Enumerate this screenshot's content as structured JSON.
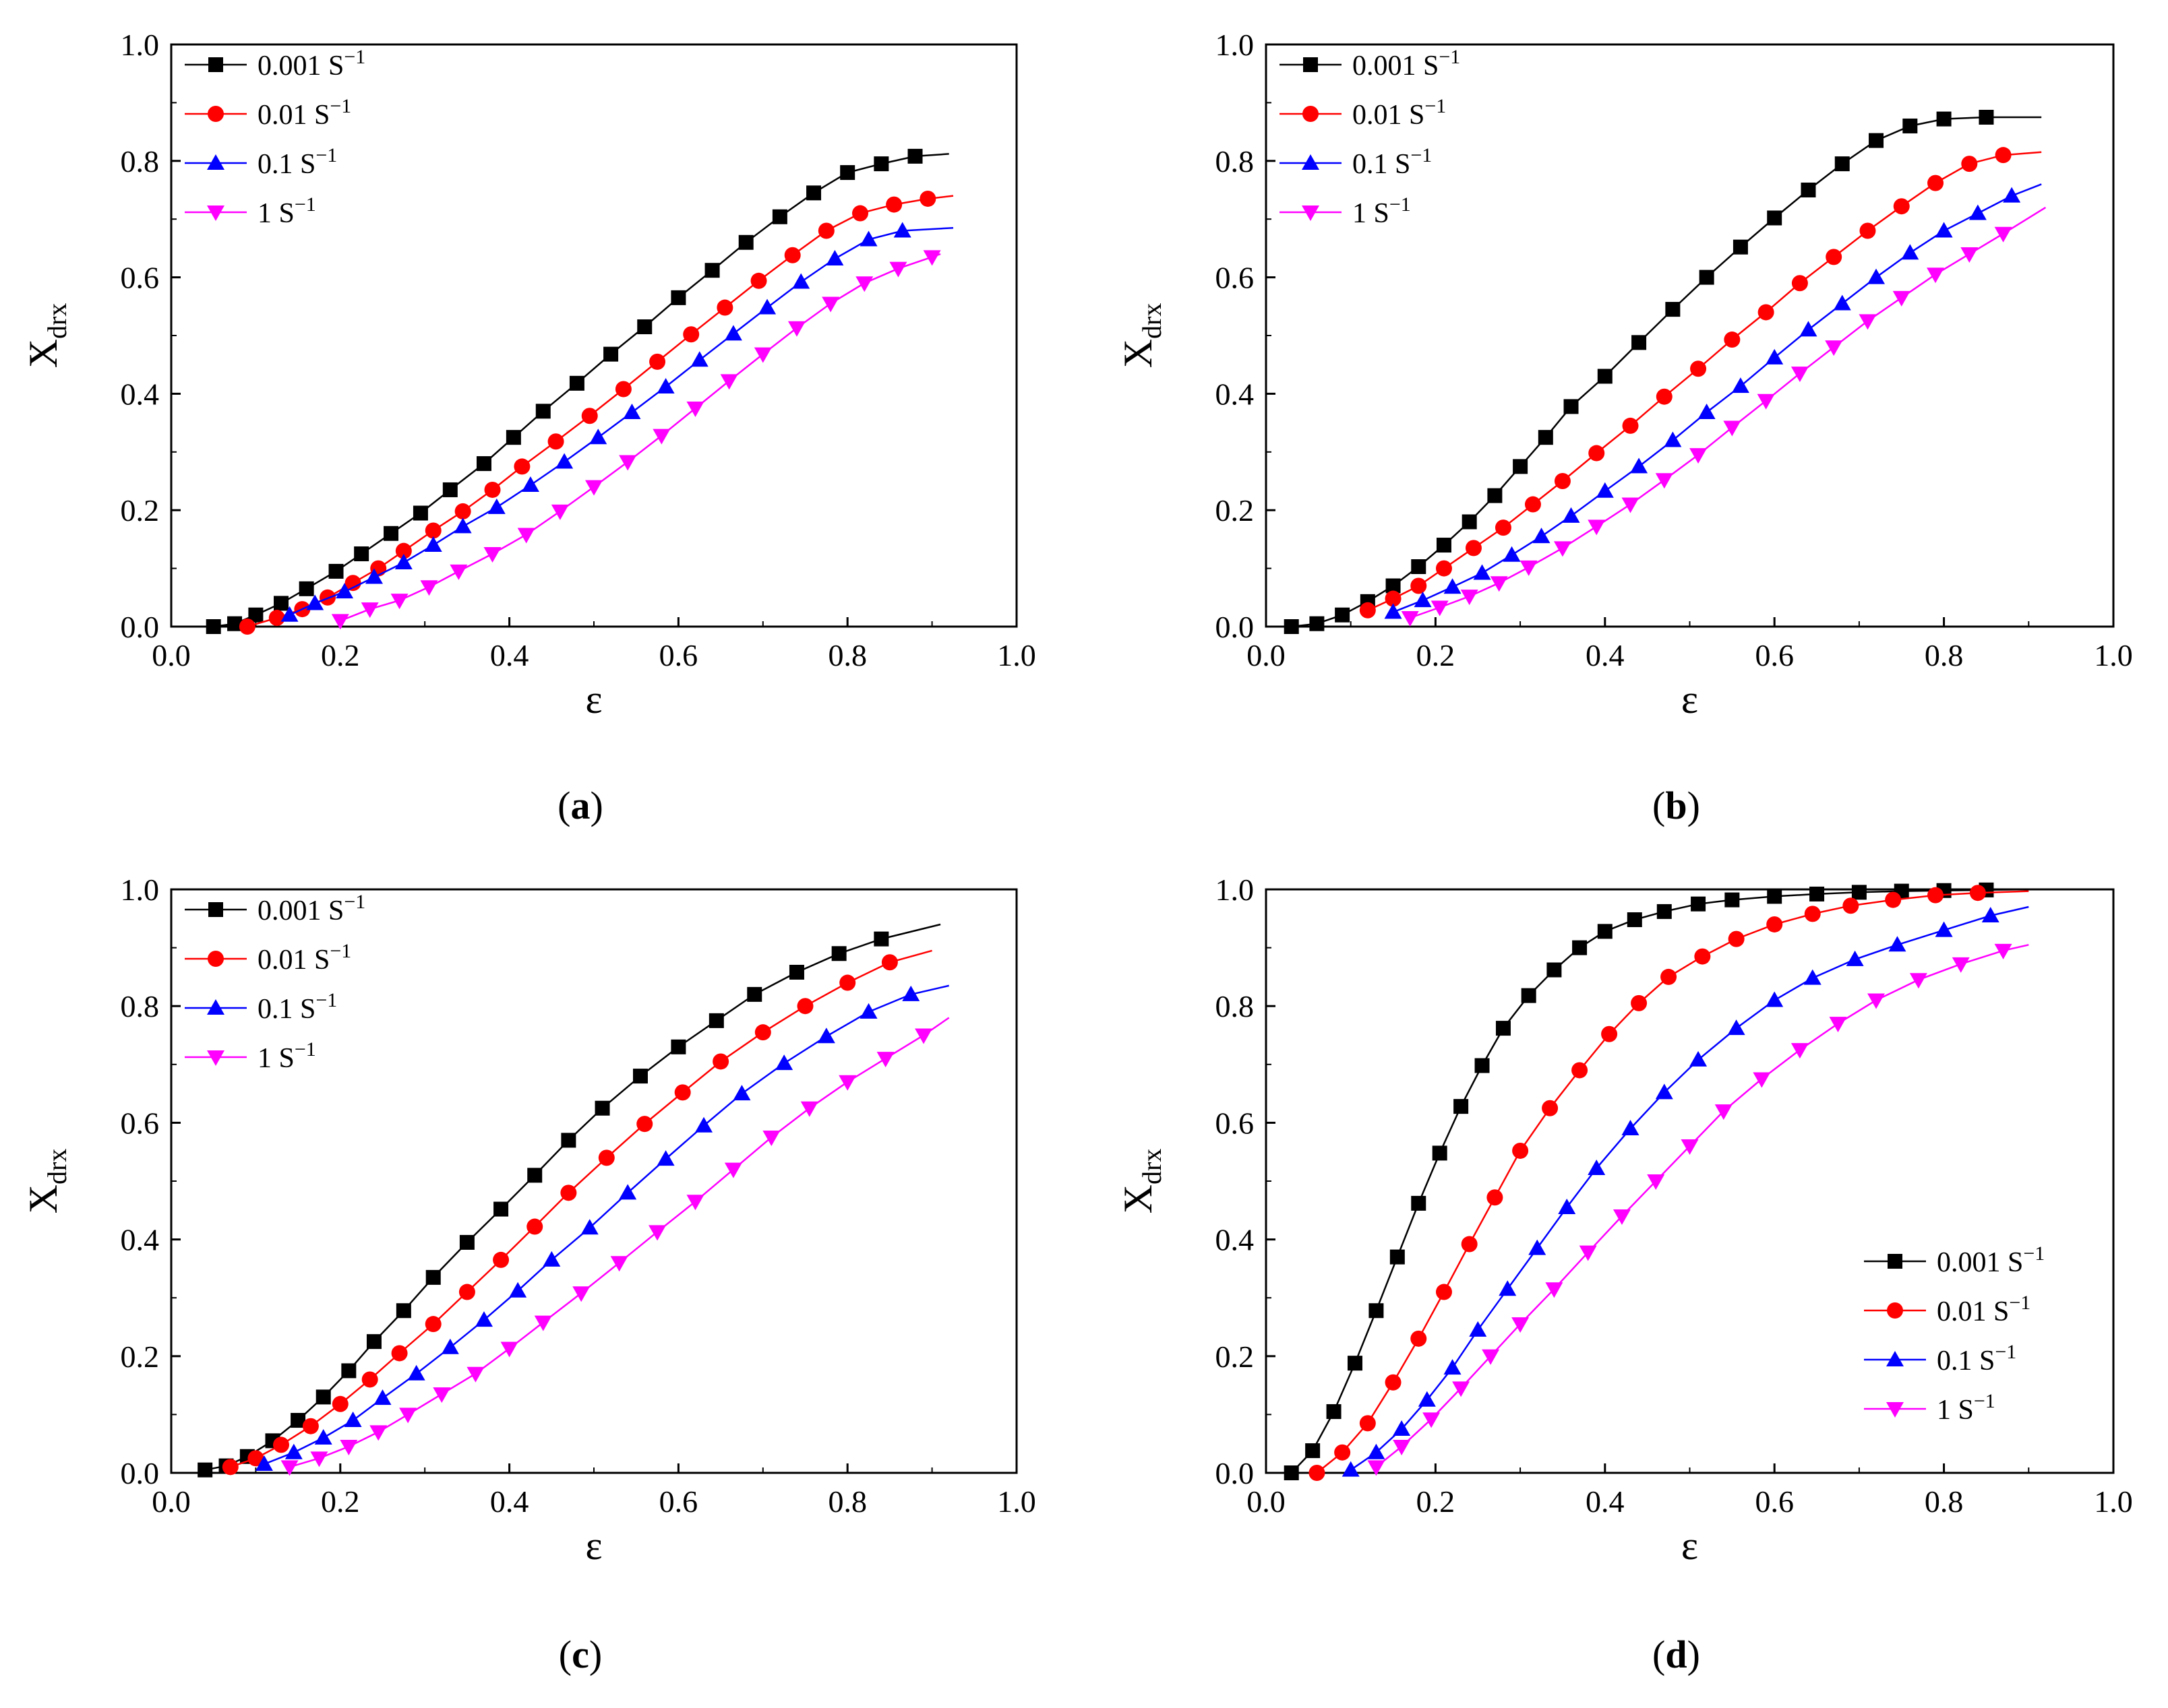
{
  "chart_data": [
    {
      "panel": "a",
      "type": "line",
      "xlabel": "ε",
      "ylabel_main": "X",
      "ylabel_sub": "drx",
      "xlim": [
        0.0,
        1.0
      ],
      "ylim": [
        0.0,
        1.0
      ],
      "xticks": [
        "0.0",
        "0.2",
        "0.4",
        "0.6",
        "0.8",
        "1.0"
      ],
      "yticks": [
        "0.0",
        "0.2",
        "0.4",
        "0.6",
        "0.8",
        "1.0"
      ],
      "legend_position": "top-left",
      "series": [
        {
          "name": "0.001",
          "unit": "S",
          "exp": "−1",
          "color": "#000000",
          "marker": "square",
          "x": [
            0.05,
            0.075,
            0.1,
            0.13,
            0.16,
            0.195,
            0.225,
            0.26,
            0.295,
            0.33,
            0.37,
            0.405,
            0.44,
            0.48,
            0.52,
            0.56,
            0.6,
            0.64,
            0.68,
            0.72,
            0.76,
            0.8,
            0.84,
            0.88,
            0.92
          ],
          "y": [
            0.0,
            0.005,
            0.02,
            0.04,
            0.065,
            0.095,
            0.125,
            0.16,
            0.195,
            0.235,
            0.28,
            0.325,
            0.37,
            0.418,
            0.468,
            0.515,
            0.565,
            0.612,
            0.66,
            0.704,
            0.745,
            0.78,
            0.795,
            0.808,
            0.812
          ]
        },
        {
          "name": "0.01",
          "unit": "S",
          "exp": "−1",
          "color": "#ff0000",
          "marker": "circle",
          "x": [
            0.09,
            0.125,
            0.155,
            0.185,
            0.215,
            0.245,
            0.275,
            0.31,
            0.345,
            0.38,
            0.415,
            0.455,
            0.495,
            0.535,
            0.575,
            0.615,
            0.655,
            0.695,
            0.735,
            0.775,
            0.815,
            0.855,
            0.895,
            0.925
          ],
          "y": [
            0.0,
            0.015,
            0.03,
            0.05,
            0.075,
            0.1,
            0.13,
            0.165,
            0.198,
            0.235,
            0.275,
            0.318,
            0.362,
            0.408,
            0.455,
            0.502,
            0.548,
            0.594,
            0.638,
            0.68,
            0.71,
            0.725,
            0.735,
            0.74
          ]
        },
        {
          "name": "0.1",
          "unit": "S",
          "exp": "−1",
          "color": "#0000ff",
          "marker": "triangle-up",
          "x": [
            0.14,
            0.17,
            0.205,
            0.24,
            0.275,
            0.31,
            0.345,
            0.385,
            0.425,
            0.465,
            0.505,
            0.545,
            0.585,
            0.625,
            0.665,
            0.705,
            0.745,
            0.785,
            0.825,
            0.865,
            0.925
          ],
          "y": [
            0.02,
            0.04,
            0.06,
            0.085,
            0.11,
            0.14,
            0.172,
            0.205,
            0.243,
            0.283,
            0.325,
            0.368,
            0.412,
            0.458,
            0.503,
            0.548,
            0.592,
            0.632,
            0.665,
            0.68,
            0.685
          ]
        },
        {
          "name": "1",
          "unit": "S",
          "exp": "−1",
          "color": "#ff00ff",
          "marker": "triangle-down",
          "x": [
            0.2,
            0.235,
            0.27,
            0.305,
            0.34,
            0.38,
            0.42,
            0.46,
            0.5,
            0.54,
            0.58,
            0.62,
            0.66,
            0.7,
            0.74,
            0.78,
            0.82,
            0.86,
            0.9,
            0.91
          ],
          "y": [
            0.01,
            0.03,
            0.045,
            0.068,
            0.095,
            0.125,
            0.158,
            0.198,
            0.24,
            0.283,
            0.328,
            0.375,
            0.422,
            0.468,
            0.513,
            0.555,
            0.59,
            0.615,
            0.635,
            0.64
          ]
        }
      ]
    },
    {
      "panel": "b",
      "type": "line",
      "xlabel": "ε",
      "ylabel_main": "X",
      "ylabel_sub": "drx",
      "xlim": [
        0.0,
        1.0
      ],
      "ylim": [
        0.0,
        1.0
      ],
      "xticks": [
        "0.0",
        "0.2",
        "0.4",
        "0.6",
        "0.8",
        "1.0"
      ],
      "yticks": [
        "0.0",
        "0.2",
        "0.4",
        "0.6",
        "0.8",
        "1.0"
      ],
      "legend_position": "top-left",
      "series": [
        {
          "name": "0.001",
          "unit": "S",
          "exp": "−1",
          "color": "#000000",
          "marker": "square",
          "x": [
            0.03,
            0.06,
            0.09,
            0.12,
            0.15,
            0.18,
            0.21,
            0.24,
            0.27,
            0.3,
            0.33,
            0.36,
            0.4,
            0.44,
            0.48,
            0.52,
            0.56,
            0.6,
            0.64,
            0.68,
            0.72,
            0.76,
            0.8,
            0.85,
            0.915
          ],
          "y": [
            0.0,
            0.005,
            0.02,
            0.043,
            0.07,
            0.103,
            0.14,
            0.18,
            0.225,
            0.275,
            0.325,
            0.378,
            0.43,
            0.488,
            0.545,
            0.6,
            0.652,
            0.702,
            0.75,
            0.795,
            0.835,
            0.86,
            0.872,
            0.875,
            0.875
          ]
        },
        {
          "name": "0.01",
          "unit": "S",
          "exp": "−1",
          "color": "#ff0000",
          "marker": "circle",
          "x": [
            0.12,
            0.15,
            0.18,
            0.21,
            0.245,
            0.28,
            0.315,
            0.35,
            0.39,
            0.43,
            0.47,
            0.51,
            0.55,
            0.59,
            0.63,
            0.67,
            0.71,
            0.75,
            0.79,
            0.83,
            0.87,
            0.915
          ],
          "y": [
            0.028,
            0.048,
            0.07,
            0.1,
            0.135,
            0.17,
            0.21,
            0.25,
            0.298,
            0.345,
            0.395,
            0.443,
            0.493,
            0.54,
            0.59,
            0.635,
            0.68,
            0.722,
            0.762,
            0.795,
            0.81,
            0.815
          ]
        },
        {
          "name": "0.1",
          "unit": "S",
          "exp": "−1",
          "color": "#0000ff",
          "marker": "triangle-up",
          "x": [
            0.15,
            0.185,
            0.22,
            0.255,
            0.29,
            0.325,
            0.36,
            0.4,
            0.44,
            0.48,
            0.52,
            0.56,
            0.6,
            0.64,
            0.68,
            0.72,
            0.76,
            0.8,
            0.84,
            0.88,
            0.915
          ],
          "y": [
            0.025,
            0.045,
            0.068,
            0.092,
            0.123,
            0.155,
            0.19,
            0.233,
            0.275,
            0.32,
            0.368,
            0.413,
            0.462,
            0.51,
            0.555,
            0.6,
            0.642,
            0.68,
            0.71,
            0.74,
            0.76
          ]
        },
        {
          "name": "1",
          "unit": "S",
          "exp": "−1",
          "color": "#ff00ff",
          "marker": "triangle-down",
          "x": [
            0.17,
            0.205,
            0.24,
            0.275,
            0.31,
            0.35,
            0.39,
            0.43,
            0.47,
            0.51,
            0.55,
            0.59,
            0.63,
            0.67,
            0.71,
            0.75,
            0.79,
            0.83,
            0.87,
            0.92
          ],
          "y": [
            0.015,
            0.033,
            0.052,
            0.075,
            0.102,
            0.135,
            0.172,
            0.21,
            0.252,
            0.295,
            0.342,
            0.388,
            0.435,
            0.48,
            0.525,
            0.565,
            0.605,
            0.64,
            0.675,
            0.72
          ]
        }
      ]
    },
    {
      "panel": "c",
      "type": "line",
      "xlabel": "ε",
      "ylabel_main": "X",
      "ylabel_sub": "drx",
      "xlim": [
        0.0,
        1.0
      ],
      "ylim": [
        0.0,
        1.0
      ],
      "xticks": [
        "0.0",
        "0.2",
        "0.4",
        "0.6",
        "0.8",
        "1.0"
      ],
      "yticks": [
        "0.0",
        "0.2",
        "0.4",
        "0.6",
        "0.8",
        "1.0"
      ],
      "legend_position": "top-left",
      "series": [
        {
          "name": "0.001",
          "unit": "S",
          "exp": "−1",
          "color": "#000000",
          "marker": "square",
          "x": [
            0.04,
            0.065,
            0.09,
            0.12,
            0.15,
            0.18,
            0.21,
            0.24,
            0.275,
            0.31,
            0.35,
            0.39,
            0.43,
            0.47,
            0.51,
            0.555,
            0.6,
            0.645,
            0.69,
            0.74,
            0.79,
            0.84,
            0.91
          ],
          "y": [
            0.005,
            0.012,
            0.028,
            0.055,
            0.09,
            0.13,
            0.175,
            0.225,
            0.278,
            0.335,
            0.395,
            0.452,
            0.51,
            0.57,
            0.625,
            0.68,
            0.73,
            0.775,
            0.82,
            0.858,
            0.89,
            0.915,
            0.94
          ]
        },
        {
          "name": "0.01",
          "unit": "S",
          "exp": "−1",
          "color": "#ff0000",
          "marker": "circle",
          "x": [
            0.07,
            0.1,
            0.13,
            0.165,
            0.2,
            0.235,
            0.27,
            0.31,
            0.35,
            0.39,
            0.43,
            0.47,
            0.515,
            0.56,
            0.605,
            0.65,
            0.7,
            0.75,
            0.8,
            0.85,
            0.9
          ],
          "y": [
            0.01,
            0.025,
            0.048,
            0.08,
            0.118,
            0.16,
            0.205,
            0.255,
            0.31,
            0.365,
            0.422,
            0.48,
            0.54,
            0.598,
            0.652,
            0.705,
            0.755,
            0.8,
            0.84,
            0.875,
            0.895
          ]
        },
        {
          "name": "0.1",
          "unit": "S",
          "exp": "−1",
          "color": "#0000ff",
          "marker": "triangle-up",
          "x": [
            0.11,
            0.145,
            0.18,
            0.215,
            0.25,
            0.29,
            0.33,
            0.37,
            0.41,
            0.45,
            0.495,
            0.54,
            0.585,
            0.63,
            0.675,
            0.725,
            0.775,
            0.825,
            0.875,
            0.92
          ],
          "y": [
            0.015,
            0.035,
            0.06,
            0.09,
            0.128,
            0.17,
            0.215,
            0.262,
            0.312,
            0.365,
            0.42,
            0.48,
            0.538,
            0.595,
            0.65,
            0.702,
            0.748,
            0.79,
            0.82,
            0.835
          ]
        },
        {
          "name": "1",
          "unit": "S",
          "exp": "−1",
          "color": "#ff00ff",
          "marker": "triangle-down",
          "x": [
            0.14,
            0.175,
            0.21,
            0.245,
            0.28,
            0.32,
            0.36,
            0.4,
            0.44,
            0.485,
            0.53,
            0.575,
            0.62,
            0.665,
            0.71,
            0.755,
            0.8,
            0.845,
            0.89,
            0.92
          ],
          "y": [
            0.01,
            0.025,
            0.045,
            0.07,
            0.1,
            0.135,
            0.17,
            0.213,
            0.258,
            0.308,
            0.36,
            0.413,
            0.465,
            0.52,
            0.575,
            0.625,
            0.67,
            0.71,
            0.75,
            0.78
          ]
        }
      ]
    },
    {
      "panel": "d",
      "type": "line",
      "xlabel": "ε",
      "ylabel_main": "X",
      "ylabel_sub": "drx",
      "xlim": [
        0.0,
        1.0
      ],
      "ylim": [
        0.0,
        1.0
      ],
      "xticks": [
        "0.0",
        "0.2",
        "0.4",
        "0.6",
        "0.8",
        "1.0"
      ],
      "yticks": [
        "0.0",
        "0.2",
        "0.4",
        "0.6",
        "0.8",
        "1.0"
      ],
      "legend_position": "bottom-right",
      "series": [
        {
          "name": "0.001",
          "unit": "S",
          "exp": "−1",
          "color": "#000000",
          "marker": "square",
          "x": [
            0.03,
            0.055,
            0.08,
            0.105,
            0.13,
            0.155,
            0.18,
            0.205,
            0.23,
            0.255,
            0.28,
            0.31,
            0.34,
            0.37,
            0.4,
            0.435,
            0.47,
            0.51,
            0.55,
            0.6,
            0.65,
            0.7,
            0.75,
            0.8,
            0.85,
            0.9
          ],
          "y": [
            0.0,
            0.038,
            0.105,
            0.188,
            0.278,
            0.37,
            0.462,
            0.548,
            0.628,
            0.698,
            0.762,
            0.818,
            0.862,
            0.9,
            0.928,
            0.948,
            0.962,
            0.975,
            0.982,
            0.988,
            0.992,
            0.995,
            0.997,
            0.998,
            0.999,
            1.0
          ]
        },
        {
          "name": "0.01",
          "unit": "S",
          "exp": "−1",
          "color": "#ff0000",
          "marker": "circle",
          "x": [
            0.06,
            0.09,
            0.12,
            0.15,
            0.18,
            0.21,
            0.24,
            0.27,
            0.3,
            0.335,
            0.37,
            0.405,
            0.44,
            0.475,
            0.515,
            0.555,
            0.6,
            0.645,
            0.69,
            0.74,
            0.79,
            0.84,
            0.9
          ],
          "y": [
            0.0,
            0.035,
            0.085,
            0.155,
            0.23,
            0.31,
            0.392,
            0.472,
            0.552,
            0.625,
            0.69,
            0.752,
            0.805,
            0.85,
            0.885,
            0.915,
            0.94,
            0.958,
            0.972,
            0.982,
            0.99,
            0.994,
            0.997
          ]
        },
        {
          "name": "0.1",
          "unit": "S",
          "exp": "−1",
          "color": "#0000ff",
          "marker": "triangle-up",
          "x": [
            0.1,
            0.13,
            0.16,
            0.19,
            0.22,
            0.25,
            0.285,
            0.32,
            0.355,
            0.39,
            0.43,
            0.47,
            0.51,
            0.555,
            0.6,
            0.645,
            0.695,
            0.745,
            0.8,
            0.855,
            0.9
          ],
          "y": [
            0.005,
            0.035,
            0.075,
            0.125,
            0.18,
            0.245,
            0.315,
            0.385,
            0.455,
            0.522,
            0.59,
            0.652,
            0.708,
            0.762,
            0.81,
            0.848,
            0.88,
            0.905,
            0.93,
            0.955,
            0.97
          ]
        },
        {
          "name": "1",
          "unit": "S",
          "exp": "−1",
          "color": "#ff00ff",
          "marker": "triangle-down",
          "x": [
            0.13,
            0.16,
            0.195,
            0.23,
            0.265,
            0.3,
            0.34,
            0.38,
            0.42,
            0.46,
            0.5,
            0.54,
            0.585,
            0.63,
            0.675,
            0.72,
            0.77,
            0.82,
            0.87,
            0.9
          ],
          "y": [
            0.01,
            0.045,
            0.092,
            0.145,
            0.2,
            0.255,
            0.315,
            0.378,
            0.44,
            0.5,
            0.56,
            0.62,
            0.675,
            0.725,
            0.77,
            0.81,
            0.845,
            0.872,
            0.895,
            0.905
          ]
        }
      ]
    }
  ]
}
